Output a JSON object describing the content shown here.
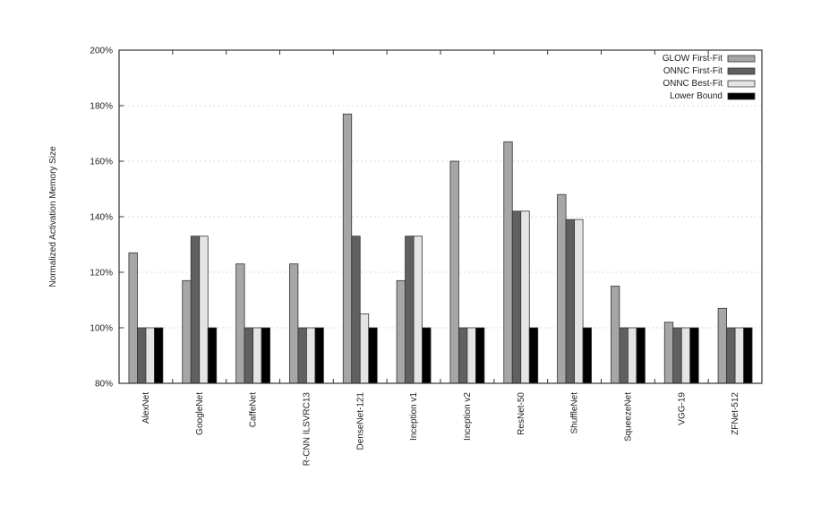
{
  "chart_data": {
    "type": "bar",
    "ylabel": "Normalized Activation Memory Size",
    "ylim": [
      80,
      200
    ],
    "yticks": [
      80,
      100,
      120,
      140,
      160,
      180,
      200
    ],
    "ytick_suffix": "%",
    "grid": true,
    "legend_position": "top-right",
    "categories": [
      "AlexNet",
      "GoogleNet",
      "CaffeNet",
      "R-CNN ILSVRC13",
      "DenseNet-121",
      "Inception v1",
      "Inception v2",
      "ResNet-50",
      "ShuffleNet",
      "SqueezeNet",
      "VGG-19",
      "ZFNet-512"
    ],
    "series": [
      {
        "name": "GLOW First-Fit",
        "color": "#a6a6a6",
        "values": [
          127,
          117,
          123,
          123,
          177,
          117,
          160,
          167,
          148,
          115,
          102,
          107
        ]
      },
      {
        "name": "ONNC First-Fit",
        "color": "#606060",
        "values": [
          100,
          133,
          100,
          100,
          133,
          133,
          100,
          142,
          139,
          100,
          100,
          100
        ]
      },
      {
        "name": "ONNC Best-Fit",
        "color": "#e4e4e4",
        "values": [
          100,
          133,
          100,
          100,
          105,
          133,
          100,
          142,
          139,
          100,
          100,
          100
        ]
      },
      {
        "name": "Lower Bound",
        "color": "#000000",
        "values": [
          100,
          100,
          100,
          100,
          100,
          100,
          100,
          100,
          100,
          100,
          100,
          100
        ]
      }
    ]
  }
}
